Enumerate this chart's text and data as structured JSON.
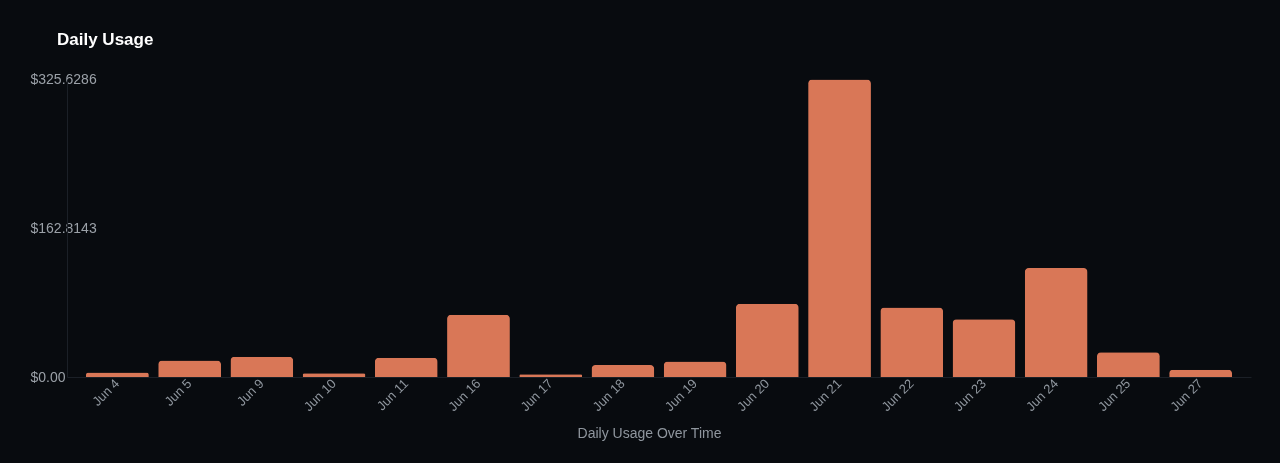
{
  "chart_data": {
    "type": "bar",
    "title": "Daily Usage",
    "xlabel": "Daily Usage Over Time",
    "categories": [
      "Jun 4",
      "Jun 5",
      "Jun 9",
      "Jun 10",
      "Jun 11",
      "Jun 16",
      "Jun 17",
      "Jun 18",
      "Jun 19",
      "Jun 20",
      "Jun 21",
      "Jun 22",
      "Jun 23",
      "Jun 24",
      "Jun 25",
      "Jun 27"
    ],
    "values": [
      5,
      18,
      22,
      4,
      21,
      68,
      3,
      13,
      17,
      80,
      325,
      76,
      63,
      119,
      27,
      8
    ],
    "color": "#d97757",
    "ylim": [
      0,
      325.6286
    ],
    "yticks": [
      {
        "value": 0,
        "label": "$0.00"
      },
      {
        "value": 162.8143,
        "label": "$162.8143"
      },
      {
        "value": 325.6286,
        "label": "$325.6286"
      }
    ]
  }
}
